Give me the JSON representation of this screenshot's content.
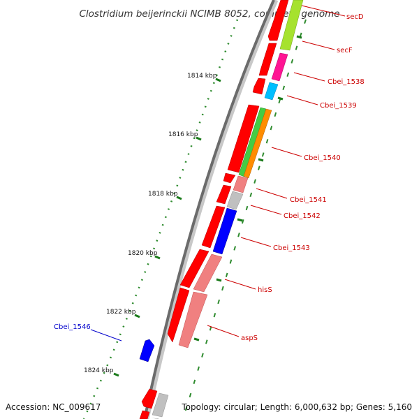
{
  "title": "Clostridium beijerinckii NCIMB 8052, complete genome",
  "accession": "Accession: NC_009617",
  "footer_info": "Topology: circular; Length: 6,000,632 bp; Genes: 5,160",
  "colors": {
    "backbone": "#6b6b6b",
    "label_default": "#cc0000",
    "label_highlight": "#0000cc",
    "tick_major": "#1a7a1a",
    "tick_minor": "#2e8b2e",
    "strand_gene": "#ff0000"
  },
  "ruler": {
    "ticks": [
      {
        "label": "1814 kbp"
      },
      {
        "label": "1816 kbp"
      },
      {
        "label": "1818 kbp"
      },
      {
        "label": "1820 kbp"
      },
      {
        "label": "1822 kbp"
      },
      {
        "label": "1824 kbp"
      }
    ]
  },
  "genes": [
    {
      "label": "secD",
      "color": "#cc0000",
      "feature_color": "#ffffff"
    },
    {
      "label": "secF",
      "color": "#cc0000",
      "feature_color": "#a6e22e"
    },
    {
      "label": "Cbei_1538",
      "color": "#cc0000",
      "feature_color": "#ff1493"
    },
    {
      "label": "Cbei_1539",
      "color": "#cc0000",
      "feature_color": "#00bfff"
    },
    {
      "label": "Cbei_1540",
      "color": "#cc0000",
      "feature_color": "#ff8c00"
    },
    {
      "label": "Cbei_1541",
      "color": "#cc0000",
      "feature_color": "#f08080"
    },
    {
      "label": "Cbei_1542",
      "color": "#cc0000",
      "feature_color": "#c0c0c0"
    },
    {
      "label": "Cbei_1543",
      "color": "#cc0000",
      "feature_color": "#0000ff"
    },
    {
      "label": "hisS",
      "color": "#cc0000",
      "feature_color": "#f08080"
    },
    {
      "label": "aspS",
      "color": "#cc0000",
      "feature_color": "#f08080"
    },
    {
      "label": "Cbei_1546",
      "color": "#0000cc",
      "feature_color": "#0000ff"
    }
  ]
}
